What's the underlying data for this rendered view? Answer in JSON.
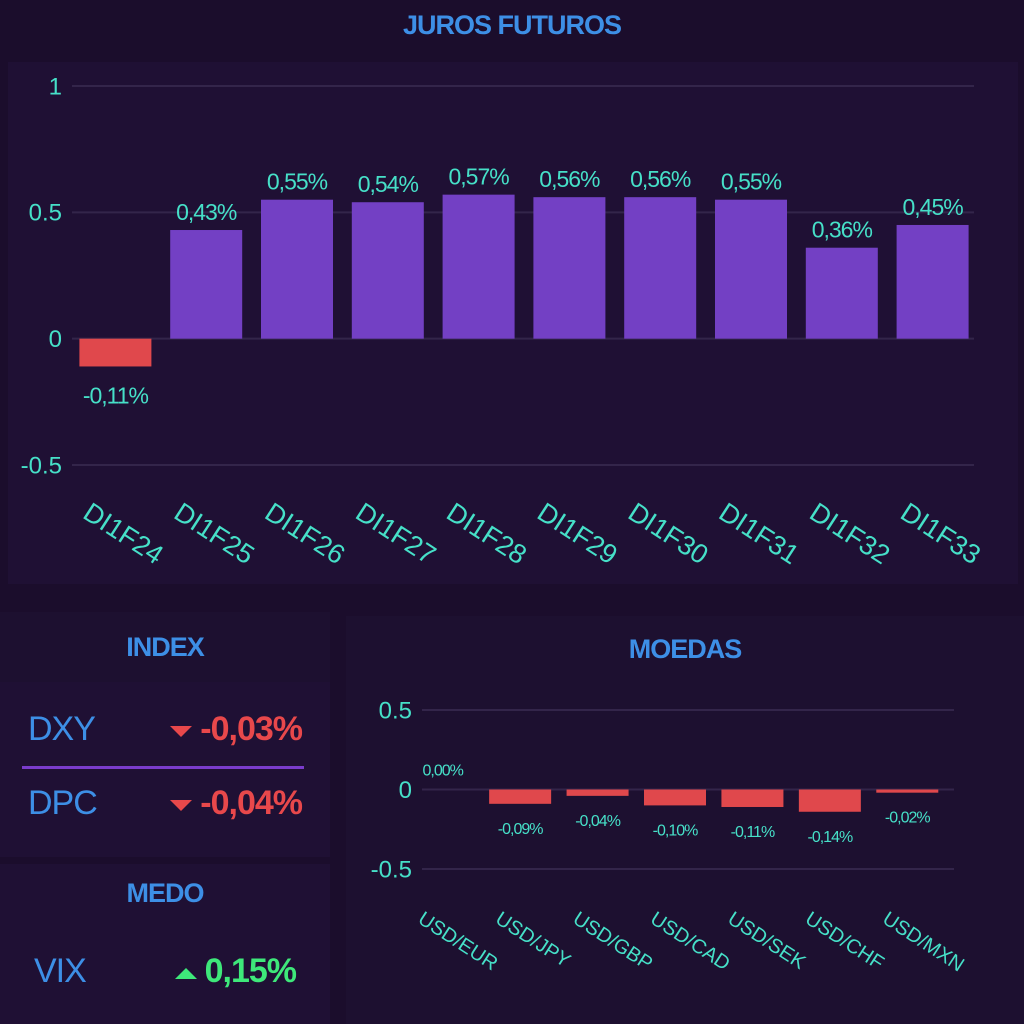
{
  "juros": {
    "title": "JUROS FUTUROS",
    "chart_data": {
      "type": "bar",
      "categories": [
        "DI1F24",
        "DI1F25",
        "DI1F26",
        "DI1F27",
        "DI1F28",
        "DI1F29",
        "DI1F30",
        "DI1F31",
        "DI1F32",
        "DI1F33"
      ],
      "values": [
        -0.11,
        0.43,
        0.55,
        0.54,
        0.57,
        0.56,
        0.56,
        0.55,
        0.36,
        0.45
      ],
      "labels": [
        "-0,11%",
        "0,43%",
        "0,55%",
        "0,54%",
        "0,57%",
        "0,56%",
        "0,56%",
        "0,55%",
        "0,36%",
        "0,45%"
      ],
      "ylim": [
        -0.5,
        1
      ],
      "yticks": [
        1,
        0.5,
        0,
        -0.5
      ],
      "ytick_labels": [
        "1",
        "0.5",
        "0",
        "-0.5"
      ],
      "grid": true
    }
  },
  "index": {
    "title": "INDEX",
    "rows": [
      {
        "name": "DXY",
        "value": "-0,03%",
        "direction": "down"
      },
      {
        "name": "DPC",
        "value": "-0,04%",
        "direction": "down"
      }
    ]
  },
  "medo": {
    "title": "MEDO",
    "rows": [
      {
        "name": "VIX",
        "value": "0,15%",
        "direction": "up"
      }
    ]
  },
  "moedas": {
    "title": "MOEDAS",
    "chart_data": {
      "type": "bar",
      "categories": [
        "USD/EUR",
        "USD/JPY",
        "USD/GBP",
        "USD/CAD",
        "USD/SEK",
        "USD/CHF",
        "USD/MXN"
      ],
      "values": [
        0.0,
        -0.09,
        -0.04,
        -0.1,
        -0.11,
        -0.14,
        -0.02
      ],
      "labels": [
        "0,00%",
        "-0,09%",
        "-0,04%",
        "-0,10%",
        "-0,11%",
        "-0,14%",
        "-0,02%"
      ],
      "ylim": [
        -0.5,
        0.5
      ],
      "yticks": [
        0.5,
        0,
        -0.5
      ],
      "ytick_labels": [
        "0.5",
        "0",
        "-0.5"
      ],
      "grid": true
    }
  },
  "colors": {
    "positive_bar": "#7340c4",
    "negative_bar": "#e0484c",
    "label": "#46e0c8",
    "title": "#3d8fe6",
    "negative_text": "#e8484b",
    "positive_text": "#3ee87a",
    "grid": "#33254a"
  }
}
